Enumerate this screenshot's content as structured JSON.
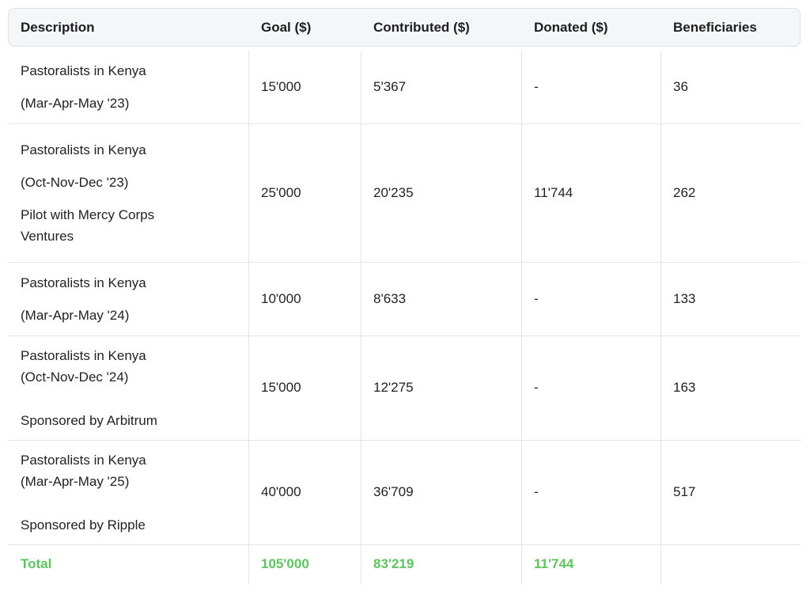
{
  "table": {
    "headers": [
      "Description",
      "Goal ($)",
      "Contributed ($)",
      "Donated ($)",
      "Beneficiaries"
    ],
    "rows": [
      {
        "description": [
          [
            "Pastoralists in Kenya"
          ],
          [
            "(Mar-Apr-May '23)"
          ]
        ],
        "cells": [
          "15'000",
          "5'367",
          "-",
          "36"
        ]
      },
      {
        "description": [
          [
            "Pastoralists in Kenya"
          ],
          [
            "(Oct-Nov-Dec '23)"
          ],
          [
            "Pilot with Mercy Corps",
            "Ventures"
          ]
        ],
        "cells": [
          "25'000",
          "20'235",
          "11'744",
          "262"
        ]
      },
      {
        "description": [
          [
            "Pastoralists in Kenya"
          ],
          [
            "(Mar-Apr-May '24)"
          ]
        ],
        "cells": [
          "10'000",
          "8'633",
          "-",
          "133"
        ]
      },
      {
        "description": [
          [
            "Pastoralists in Kenya",
            "(Oct-Nov-Dec '24)"
          ],
          [
            "Sponsored by Arbitrum"
          ]
        ],
        "cells": [
          "15'000",
          "12'275",
          "-",
          "163"
        ]
      },
      {
        "description": [
          [
            "Pastoralists in Kenya",
            "(Mar-Apr-May '25)"
          ],
          [
            "Sponsored by Ripple"
          ]
        ],
        "cells": [
          "40'000",
          "36'709",
          "-",
          "517"
        ]
      }
    ],
    "total": {
      "label": "Total",
      "cells": [
        "105'000",
        "83'219",
        "11'744"
      ]
    }
  }
}
